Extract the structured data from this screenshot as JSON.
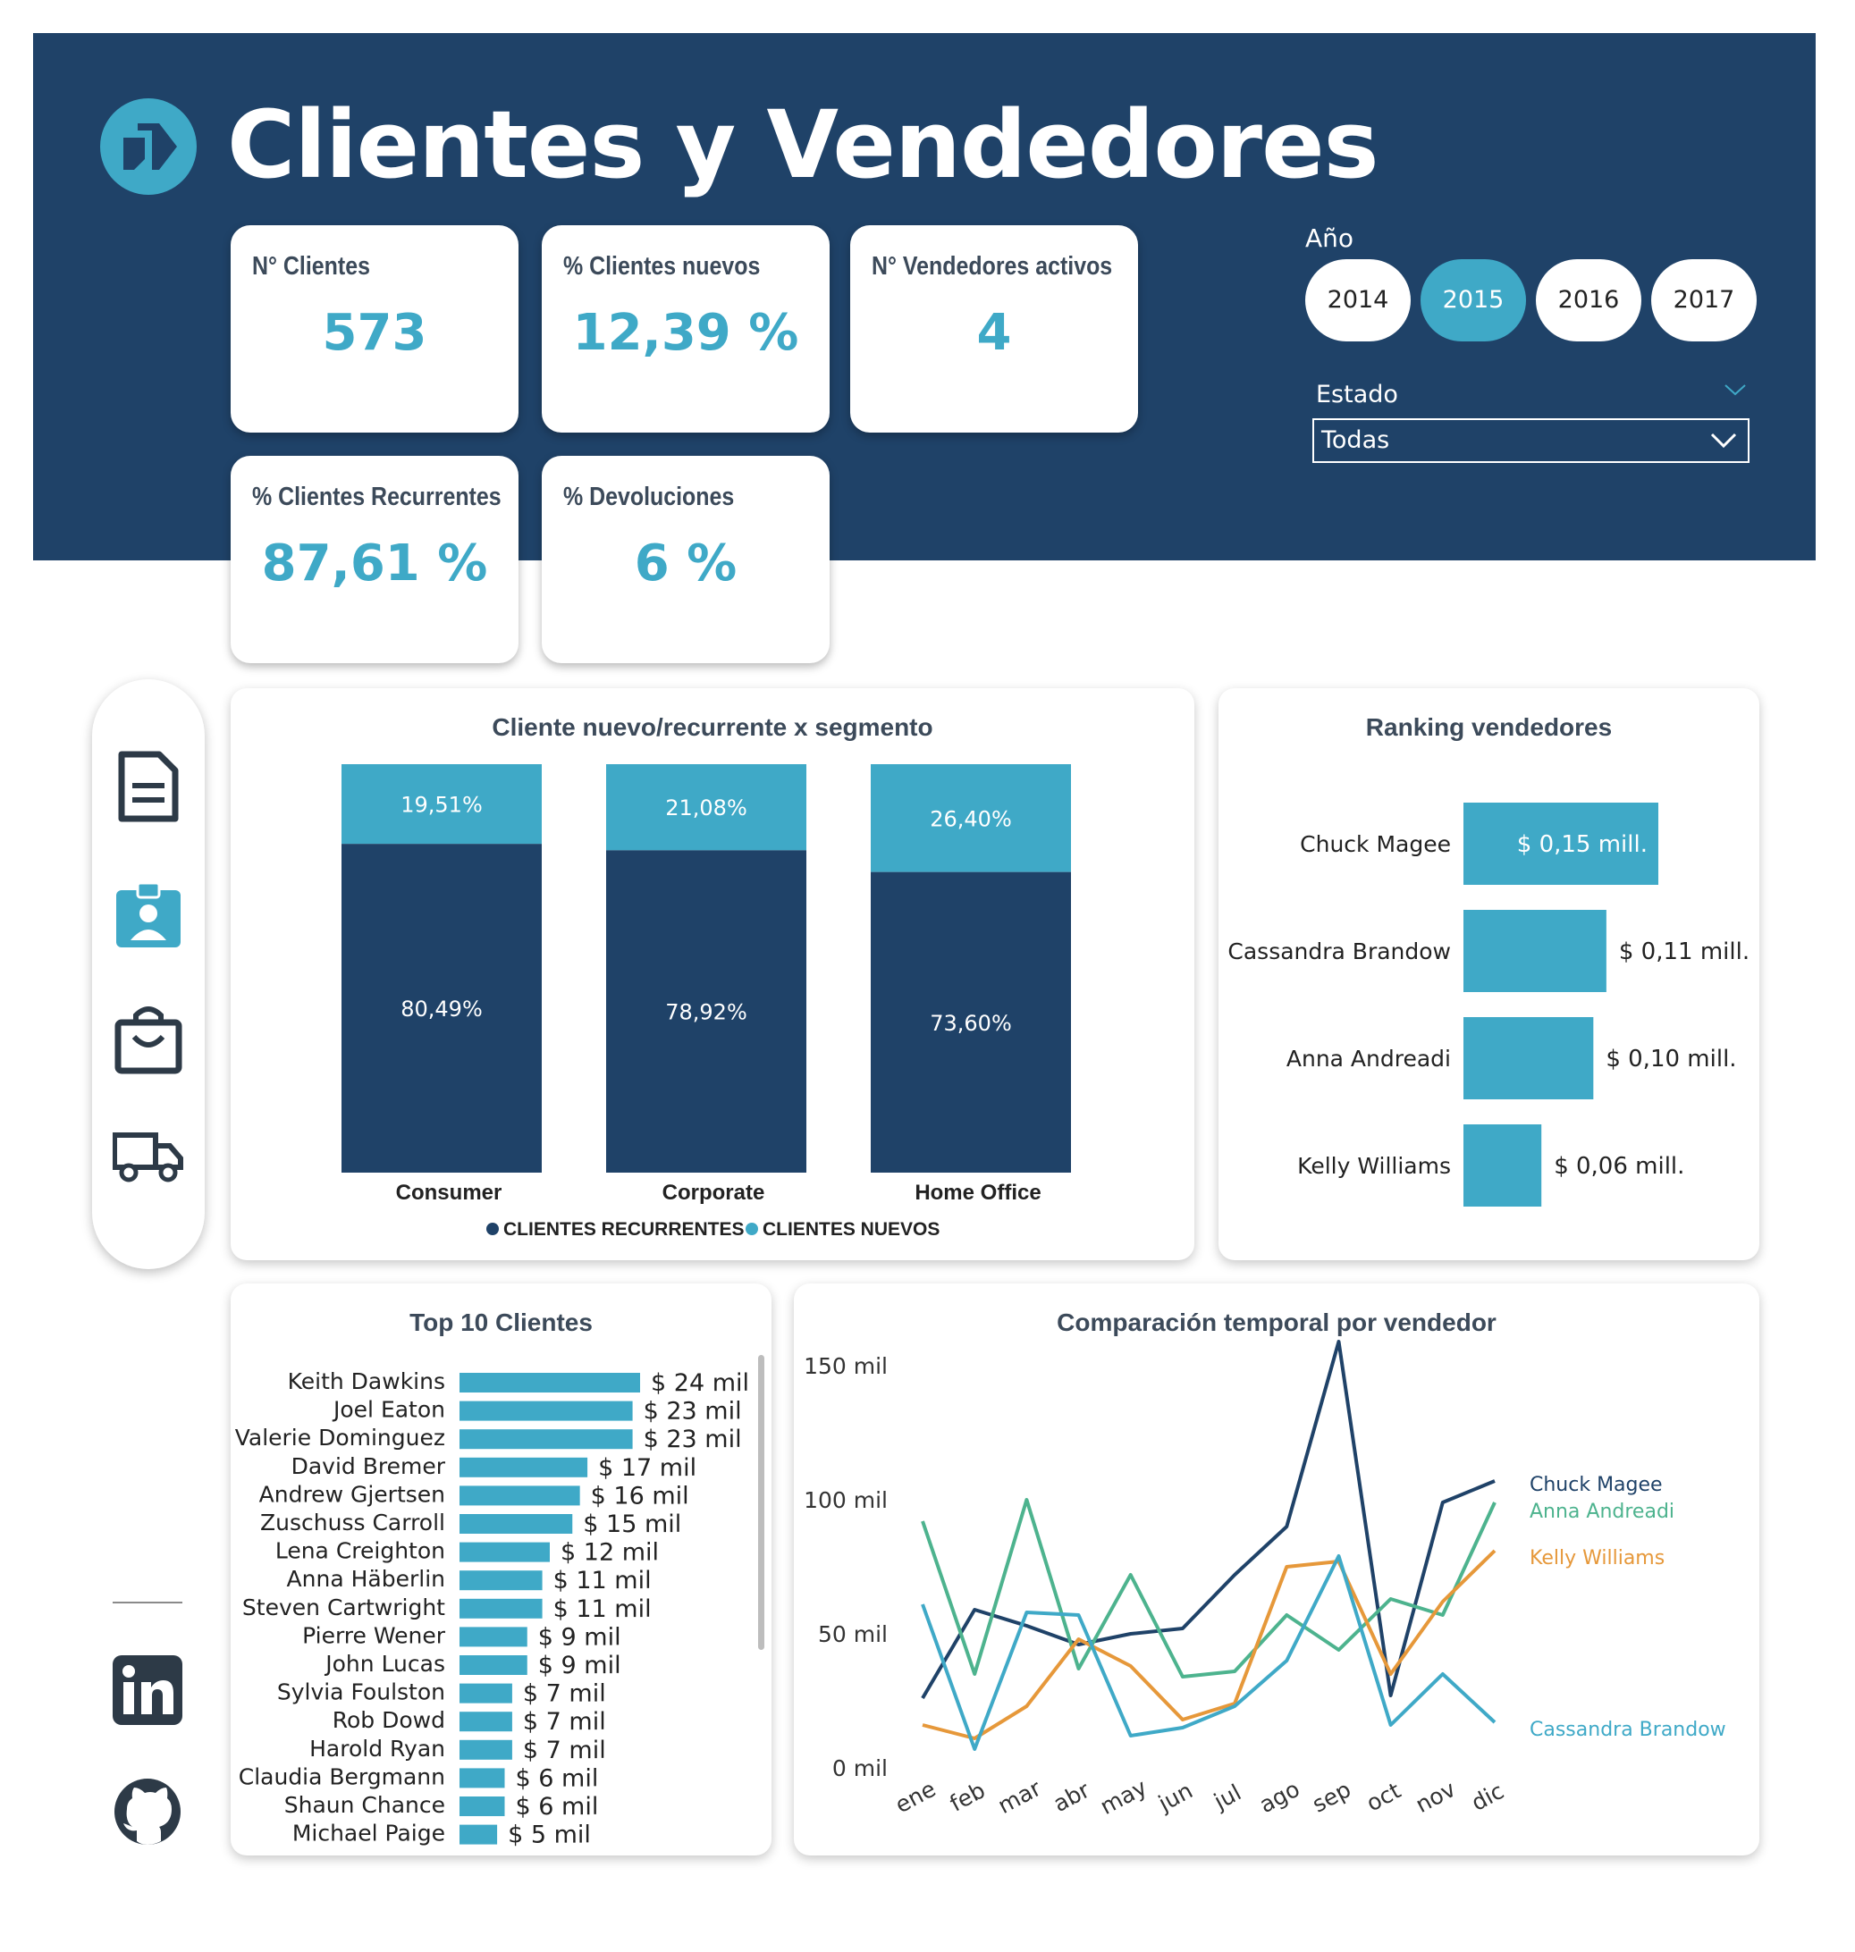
{
  "header": {
    "title": "Clientes y Vendedores"
  },
  "kpis": [
    {
      "label": "N° Clientes",
      "value": "573"
    },
    {
      "label": "% Clientes nuevos",
      "value": "12,39 %"
    },
    {
      "label": "N° Vendedores activos",
      "value": "4"
    },
    {
      "label": "% Clientes Recurrentes",
      "value": "87,61 %"
    },
    {
      "label": "% Devoluciones",
      "value": "6 %"
    }
  ],
  "filters": {
    "year_label": "Año",
    "years": [
      "2014",
      "2015",
      "2016",
      "2017"
    ],
    "selected_year": "2015",
    "estado_label": "Estado",
    "estado_value": "Todas"
  },
  "colors": {
    "navy": "#1f4268",
    "teal": "#3fa9c7",
    "green": "#4db38e",
    "orange": "#e6983a"
  },
  "nav_icons": [
    "document-icon",
    "badge-icon",
    "shopping-bag-icon",
    "truck-icon",
    "linkedin-icon",
    "github-icon"
  ],
  "chart_data": [
    {
      "type": "bar",
      "title": "Cliente nuevo/recurrente x segmento",
      "stacked": true,
      "categories": [
        "Consumer",
        "Corporate",
        "Home Office"
      ],
      "series": [
        {
          "name": "CLIENTES RECURRENTES",
          "values": [
            80.49,
            78.92,
            73.6
          ],
          "labels": [
            "80,49%",
            "78,92%",
            "73,60%"
          ]
        },
        {
          "name": "CLIENTES NUEVOS",
          "values": [
            19.51,
            21.08,
            26.4
          ],
          "labels": [
            "19,51%",
            "21,08%",
            "26,40%"
          ]
        }
      ],
      "legend": "bottom"
    },
    {
      "type": "bar",
      "title": "Ranking vendedores",
      "orientation": "horizontal",
      "categories": [
        "Chuck Magee",
        "Cassandra Brandow",
        "Anna Andreadi",
        "Kelly Williams"
      ],
      "values": [
        0.15,
        0.11,
        0.1,
        0.06
      ],
      "labels": [
        "$ 0,15 mill.",
        "$ 0,11 mill.",
        "$ 0,10 mill.",
        "$ 0,06 mill."
      ]
    },
    {
      "type": "bar",
      "title": "Top 10 Clientes",
      "orientation": "horizontal",
      "categories": [
        "Keith Dawkins",
        "Joel Eaton",
        "Valerie Dominguez",
        "David Bremer",
        "Andrew Gjertsen",
        "Zuschuss Carroll",
        "Lena Creighton",
        "Anna Häberlin",
        "Steven Cartwright",
        "Pierre Wener",
        "John Lucas",
        "Sylvia Foulston",
        "Rob Dowd",
        "Harold Ryan",
        "Claudia Bergmann",
        "Shaun Chance",
        "Michael Paige"
      ],
      "values": [
        24,
        23,
        23,
        17,
        16,
        15,
        12,
        11,
        11,
        9,
        9,
        7,
        7,
        7,
        6,
        6,
        5
      ],
      "labels": [
        "$ 24 mil",
        "$ 23 mil",
        "$ 23 mil",
        "$ 17 mil",
        "$ 16 mil",
        "$ 15 mil",
        "$ 12 mil",
        "$ 11 mil",
        "$ 11 mil",
        "$ 9 mil",
        "$ 9 mil",
        "$ 7 mil",
        "$ 7 mil",
        "$ 7 mil",
        "$ 6 mil",
        "$ 6 mil",
        "$ 5 mil"
      ]
    },
    {
      "type": "line",
      "title": "Comparación temporal por vendedor",
      "x": [
        "ene",
        "feb",
        "mar",
        "abr",
        "may",
        "jun",
        "jul",
        "ago",
        "sep",
        "oct",
        "nov",
        "dic"
      ],
      "y_ticks": [
        "0 mil",
        "50 mil",
        "100 mil",
        "150 mil"
      ],
      "ylim": [
        0,
        150
      ],
      "series": [
        {
          "name": "Chuck Magee",
          "color": "#1f4268",
          "values": [
            26,
            59,
            53,
            46,
            50,
            52,
            72,
            90,
            159,
            27,
            99,
            107
          ]
        },
        {
          "name": "Anna Andreadi",
          "color": "#4db38e",
          "values": [
            92,
            35,
            100,
            37,
            72,
            34,
            36,
            57,
            44,
            63,
            57,
            99
          ]
        },
        {
          "name": "Kelly Williams",
          "color": "#e6983a",
          "values": [
            16,
            11,
            23,
            48,
            38,
            18,
            24,
            75,
            77,
            35,
            62,
            81
          ]
        },
        {
          "name": "Cassandra Brandow",
          "color": "#3fa9c7",
          "values": [
            61,
            7,
            58,
            57,
            12,
            15,
            23,
            40,
            79,
            16,
            35,
            17
          ]
        }
      ]
    }
  ]
}
